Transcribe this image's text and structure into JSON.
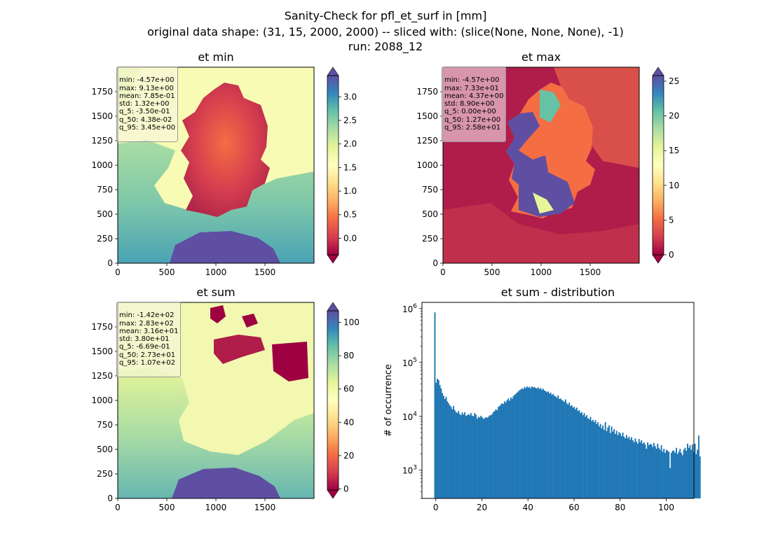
{
  "figure": {
    "title_line1": "Sanity-Check for pfl_et_surf in [mm]",
    "title_line2": "original data shape: (31, 15, 2000, 2000) -- sliced with: (slice(None, None, None), -1)",
    "title_line3": "run: 2088_12"
  },
  "panels": {
    "et_min": {
      "title": "et min",
      "stats": [
        "min: -4.57e+00",
        "max: 9.13e+00",
        "mean: 7.85e-01",
        "std: 1.32e+00",
        "q_5: -3.50e-01",
        "q_50: 4.38e-02",
        "q_95: 3.45e+00"
      ]
    },
    "et_max": {
      "title": "et max",
      "stats": [
        "min: -4.57e+00",
        "max: 7.33e+01",
        "mean: 4.37e+00",
        "std: 8.90e+00",
        "q_5: 0.00e+00",
        "q_50: 1.27e+00",
        "q_95: 2.58e+01"
      ]
    },
    "et_sum": {
      "title": "et sum",
      "stats": [
        "min: -1.42e+02",
        "max: 2.83e+02",
        "mean: 3.16e+01",
        "std: 3.80e+01",
        "q_5: -6.69e-01",
        "q_50: 2.73e+01",
        "q_95: 1.07e+02"
      ]
    },
    "hist": {
      "title": "et sum - distribution",
      "ylabel": "# of occurrence"
    }
  },
  "colors": {
    "histogram_bar": "#1f77b4",
    "colormap": "Spectral"
  },
  "chart_data": [
    {
      "type": "heatmap",
      "title": "et min",
      "colormap": "Spectral",
      "xlim": [
        0,
        2000
      ],
      "ylim": [
        0,
        2000
      ],
      "xticks": [
        0,
        500,
        1000,
        1500
      ],
      "yticks": [
        0,
        250,
        500,
        750,
        1000,
        1250,
        1500,
        1750
      ],
      "colorbar": {
        "ticks": [
          0.0,
          0.5,
          1.0,
          1.5,
          2.0,
          2.5,
          3.0
        ],
        "tick_labels": [
          "0.0",
          "0.5",
          "1.0",
          "1.5",
          "2.0",
          "2.5",
          "3.0"
        ],
        "range": [
          -0.35,
          3.45
        ],
        "extend": "both"
      }
    },
    {
      "type": "heatmap",
      "title": "et max",
      "colormap": "Spectral",
      "xlim": [
        0,
        2000
      ],
      "ylim": [
        0,
        2000
      ],
      "xticks": [
        0,
        500,
        1000,
        1500
      ],
      "yticks": [
        0,
        250,
        500,
        750,
        1000,
        1250,
        1500,
        1750
      ],
      "colorbar": {
        "ticks": [
          0,
          5,
          10,
          15,
          20,
          25
        ],
        "tick_labels": [
          "0",
          "5",
          "10",
          "15",
          "20",
          "25"
        ],
        "range": [
          0,
          25.8
        ],
        "extend": "both"
      }
    },
    {
      "type": "heatmap",
      "title": "et sum",
      "colormap": "Spectral",
      "xlim": [
        0,
        2000
      ],
      "ylim": [
        0,
        2000
      ],
      "xticks": [
        0,
        500,
        1000,
        1500
      ],
      "yticks": [
        0,
        250,
        500,
        750,
        1000,
        1250,
        1500,
        1750
      ],
      "colorbar": {
        "ticks": [
          0,
          20,
          40,
          60,
          80,
          100
        ],
        "tick_labels": [
          "0",
          "20",
          "40",
          "60",
          "80",
          "100"
        ],
        "range": [
          -0.67,
          107
        ],
        "extend": "both"
      }
    },
    {
      "type": "bar",
      "title": "et sum - distribution",
      "xlabel": "",
      "ylabel": "# of occurrence",
      "xlim": [
        -6,
        112
      ],
      "ylim": [
        300,
        1300000
      ],
      "yscale": "log",
      "xticks": [
        0,
        20,
        40,
        60,
        80,
        100
      ],
      "yticks": [
        1000,
        10000,
        100000,
        1000000
      ],
      "ytick_labels": [
        "10^3",
        "10^4",
        "10^5",
        "10^6"
      ],
      "bin_width": 0.54,
      "bin_start": -0.67,
      "values": [
        850000,
        42000,
        50000,
        47000,
        38000,
        33000,
        27000,
        24000,
        21000,
        23000,
        19000,
        17500,
        16000,
        15000,
        13500,
        15500,
        13000,
        12000,
        11500,
        12500,
        11000,
        10500,
        11800,
        10800,
        12000,
        10200,
        10500,
        11000,
        10500,
        11500,
        10300,
        10000,
        11500,
        10700,
        9000,
        9800,
        9500,
        10200,
        9600,
        8900,
        9300,
        9600,
        9400,
        9800,
        10400,
        10500,
        11000,
        12000,
        12500,
        13500,
        13000,
        15000,
        15500,
        16500,
        17500,
        17000,
        19000,
        18000,
        20000,
        21500,
        19500,
        22500,
        21000,
        23500,
        25000,
        26000,
        27500,
        29000,
        30500,
        31500,
        33000,
        32000,
        35000,
        33500,
        36000,
        34000,
        35500,
        33000,
        36000,
        34500,
        35000,
        33500,
        33000,
        34500,
        32000,
        33500,
        31000,
        32500,
        30000,
        29500,
        28000,
        29000,
        26500,
        27500,
        25000,
        26000,
        24000,
        23500,
        22000,
        24500,
        21000,
        21500,
        20000,
        19500,
        18500,
        20500,
        17500,
        16500,
        18000,
        15500,
        16000,
        14500,
        15000,
        13500,
        14500,
        12500,
        13000,
        11500,
        12000,
        10500,
        11500,
        9800,
        10500,
        9200,
        8800,
        9800,
        8200,
        8600,
        7800,
        8500,
        7200,
        7800,
        6500,
        7200,
        6000,
        6800,
        5600,
        7800,
        5300,
        6200,
        6800,
        4900,
        6500,
        5200,
        5800,
        4700,
        5400,
        4500,
        5100,
        4800,
        4300,
        5000,
        4200,
        3900,
        4500,
        3900,
        4200,
        3700,
        4100,
        3600,
        3300,
        3900,
        3400,
        3100,
        3800,
        3300,
        3600,
        3100,
        3300,
        3000,
        2500,
        3300,
        2900,
        3100,
        3000,
        2700,
        3200,
        2800,
        2500,
        3100,
        2600,
        2400,
        2900,
        2200,
        2500,
        2100,
        2400,
        2300,
        2200,
        1100,
        2100,
        2300,
        2300,
        2100,
        2600,
        2000,
        2200,
        2500,
        2100,
        1900,
        2400,
        2600,
        2300,
        3100,
        2600,
        2900,
        2400,
        3000,
        2200,
        3100,
        2000,
        2400,
        4400,
        1800
      ]
    }
  ]
}
